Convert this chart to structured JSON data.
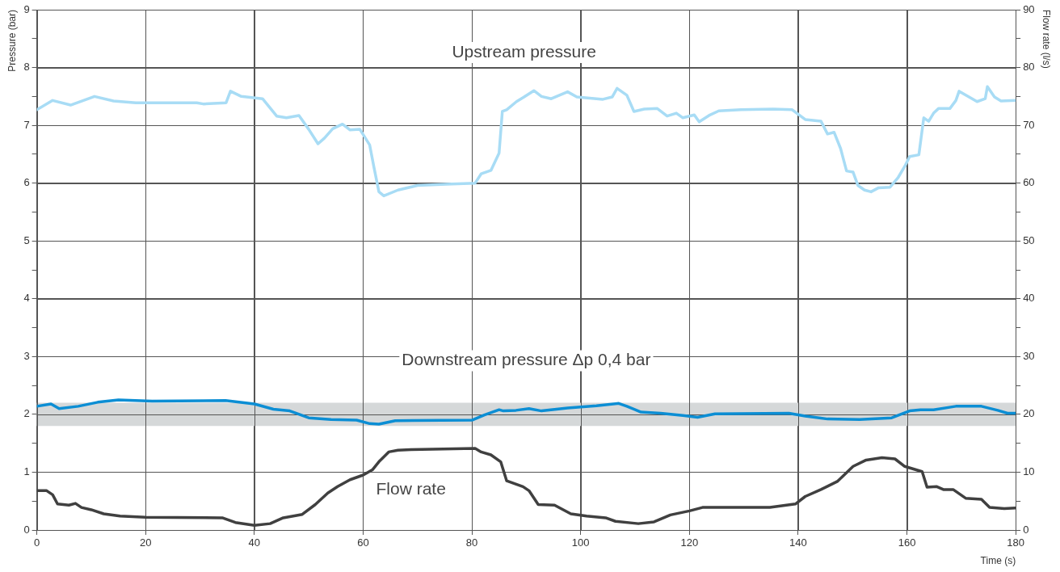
{
  "chart_data": {
    "type": "line",
    "xlabel": "Time (s)",
    "ylabel": "Pressure (bar)",
    "y2label": "Flow rate (l/s)",
    "xlim": [
      0,
      180
    ],
    "xticks": [
      0,
      20,
      40,
      60,
      80,
      100,
      120,
      140,
      160,
      180
    ],
    "ylim": [
      0,
      9
    ],
    "yticks": [
      0,
      {
        "value": 0.5,
        "label": null
      },
      1,
      {
        "value": 1.5,
        "label": null
      },
      2,
      {
        "value": 2.5,
        "label": null
      },
      3,
      {
        "value": 3.5,
        "label": null
      },
      4,
      {
        "value": 4.5,
        "label": null
      },
      5,
      {
        "value": 5.5,
        "label": null
      },
      6,
      {
        "value": 6.5,
        "label": null
      },
      7,
      {
        "value": 7.5,
        "label": null
      },
      8,
      {
        "value": 8.5,
        "label": null
      },
      9
    ],
    "y2lim": [
      0,
      90
    ],
    "y2ticks": [
      0,
      {
        "value": 5,
        "label": null
      },
      10,
      {
        "value": 15,
        "label": null
      },
      20,
      {
        "value": 25,
        "label": null
      },
      30,
      {
        "value": 35,
        "label": null
      },
      40,
      {
        "value": 45,
        "label": null
      },
      50,
      {
        "value": 55,
        "label": null
      },
      60,
      {
        "value": 65,
        "label": null
      },
      70,
      {
        "value": 75,
        "label": null
      },
      80,
      {
        "value": 85,
        "label": null
      },
      90
    ],
    "grid": true,
    "legend": false,
    "marker": "none",
    "line_style": "solid",
    "bands": [
      {
        "axis": "y",
        "from": 1.8,
        "to": 2.2,
        "label": "Downstream pressure Δp 0,4 bar",
        "color": "#d5d8d9"
      }
    ],
    "series": [
      {
        "name": "Upstream pressure",
        "color": "#a8dcf5",
        "x": [
          0,
          2.9,
          6.2,
          10.6,
          14.1,
          18.2,
          29.4,
          30.6,
          34.8,
          35.6,
          37.6,
          41.5,
          44.1,
          45.9,
          48.2,
          50,
          51.7,
          52.9,
          54.4,
          56.2,
          57.6,
          59.4,
          61.2,
          62,
          62.9,
          63.8,
          66.4,
          70,
          75.3,
          80.6,
          81.7,
          83.5,
          85,
          85.6,
          86.4,
          88.2,
          89.6,
          91.4,
          92.8,
          94.6,
          97.6,
          99.3,
          104.1,
          105.8,
          106.7,
          108.5,
          109.8,
          111.7,
          114.1,
          115.9,
          117.6,
          118.8,
          120.9,
          121.8,
          123.6,
          125.4,
          129.5,
          135.4,
          138.9,
          141.3,
          144.2,
          145.4,
          146.6,
          147.8,
          148.9,
          150.1,
          151,
          152.2,
          153.4,
          154.8,
          156.9,
          158.4,
          159.6,
          160.5,
          162.2,
          163.1,
          164,
          164.9,
          165.8,
          167.9,
          169,
          169.6,
          172,
          172.9,
          174.4,
          174.8,
          176.1,
          177.3,
          180
        ],
        "values": [
          7.27,
          7.43,
          7.35,
          7.5,
          7.42,
          7.39,
          7.39,
          7.37,
          7.39,
          7.59,
          7.5,
          7.46,
          7.16,
          7.13,
          7.17,
          6.93,
          6.68,
          6.78,
          6.94,
          7.02,
          6.92,
          6.93,
          6.66,
          6.27,
          5.85,
          5.78,
          5.88,
          5.96,
          5.98,
          6,
          6.16,
          6.22,
          6.52,
          7.24,
          7.27,
          7.41,
          7.49,
          7.6,
          7.5,
          7.46,
          7.58,
          7.49,
          7.45,
          7.49,
          7.64,
          7.52,
          7.24,
          7.28,
          7.29,
          7.16,
          7.21,
          7.13,
          7.18,
          7.06,
          7.17,
          7.25,
          7.27,
          7.28,
          7.27,
          7.1,
          7.07,
          6.85,
          6.88,
          6.6,
          6.21,
          6.19,
          5.96,
          5.88,
          5.85,
          5.92,
          5.93,
          6.1,
          6.29,
          6.46,
          6.49,
          7.13,
          7.07,
          7.21,
          7.29,
          7.29,
          7.43,
          7.59,
          7.46,
          7.41,
          7.46,
          7.67,
          7.49,
          7.42,
          7.43
        ]
      },
      {
        "color": "#0c8ed4",
        "x": [
          0,
          2.6,
          4.1,
          7.6,
          11.2,
          15,
          21.2,
          34.7,
          40,
          43.5,
          46.5,
          50,
          54.1,
          58.8,
          61.2,
          62.9,
          65.9,
          80,
          82.3,
          85,
          85.8,
          88.1,
          90.5,
          92.8,
          97.6,
          102.9,
          107,
          108.5,
          111.1,
          114.7,
          118.8,
          121.5,
          124.7,
          138.3,
          141.3,
          145.4,
          151.3,
          157.2,
          160.5,
          162.5,
          164.9,
          169,
          173.7,
          176.7,
          178.5,
          180
        ],
        "values": [
          2.14,
          2.18,
          2.1,
          2.14,
          2.21,
          2.25,
          2.23,
          2.24,
          2.18,
          2.09,
          2.06,
          1.94,
          1.91,
          1.9,
          1.84,
          1.83,
          1.89,
          1.9,
          1.99,
          2.08,
          2.06,
          2.07,
          2.1,
          2.06,
          2.11,
          2.15,
          2.19,
          2.14,
          2.04,
          2.02,
          1.98,
          1.95,
          2.01,
          2.02,
          1.97,
          1.92,
          1.91,
          1.94,
          2.06,
          2.08,
          2.08,
          2.14,
          2.14,
          2.07,
          2.02,
          2.02
        ]
      },
      {
        "name": "Flow rate",
        "color": "#404040",
        "axis": "y2",
        "x": [
          0,
          1.8,
          2.9,
          3.8,
          5.9,
          7.1,
          8.2,
          10,
          12.3,
          15.3,
          20,
          34.1,
          36.5,
          40,
          42.9,
          45.3,
          48.8,
          51.2,
          53.5,
          55.3,
          57.6,
          60,
          61.7,
          62.9,
          64.7,
          66.4,
          68.8,
          80.6,
          81.7,
          83.5,
          85.3,
          86.4,
          89.4,
          90.5,
          92.2,
          95.2,
          98.2,
          101.1,
          104.6,
          106.4,
          110.6,
          113.5,
          116.5,
          120,
          122.4,
          134.8,
          139.5,
          141.3,
          144.2,
          147.2,
          150.1,
          152.5,
          155.4,
          157.8,
          159.6,
          162.8,
          163.7,
          165.5,
          166.7,
          168.5,
          170.8,
          173.7,
          175.2,
          177.9,
          180
        ],
        "values": [
          6.8,
          6.8,
          6.1,
          4.5,
          4.3,
          4.6,
          3.9,
          3.5,
          2.8,
          2.4,
          2.2,
          2.1,
          1.3,
          0.8,
          1.1,
          2.1,
          2.7,
          4.4,
          6.4,
          7.5,
          8.7,
          9.5,
          10.4,
          11.8,
          13.5,
          13.8,
          13.9,
          14.1,
          13.5,
          13,
          11.8,
          8.5,
          7.5,
          6.8,
          4.4,
          4.3,
          2.8,
          2.4,
          2.1,
          1.5,
          1.1,
          1.4,
          2.6,
          3.3,
          3.9,
          3.9,
          4.5,
          5.8,
          7,
          8.4,
          11,
          12.1,
          12.5,
          12.3,
          11,
          10.1,
          7.4,
          7.5,
          7,
          7,
          5.5,
          5.3,
          3.9,
          3.7,
          3.8
        ]
      }
    ]
  }
}
